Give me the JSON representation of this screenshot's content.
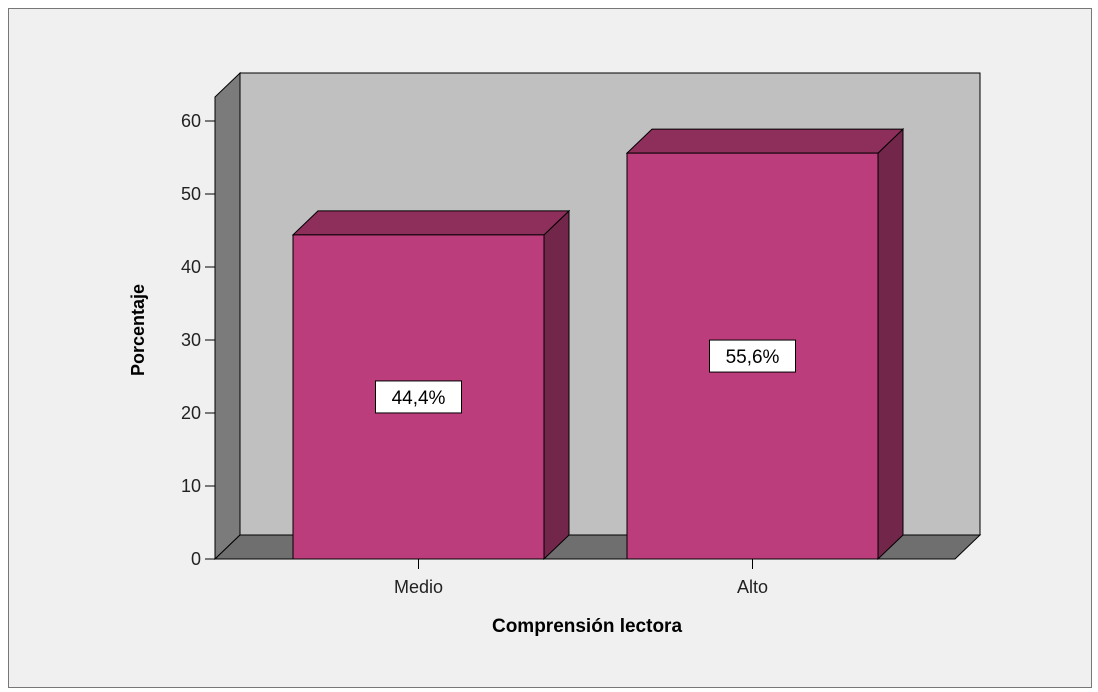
{
  "chart_data": {
    "type": "bar",
    "categories": [
      "Medio",
      "Alto"
    ],
    "values": [
      44.4,
      55.6
    ],
    "data_labels": [
      "44,4%",
      "55,6%"
    ],
    "title": "",
    "xlabel": "Comprensión lectora",
    "ylabel": "Porcentaje",
    "ylim": [
      0,
      60
    ],
    "yticks": [
      0,
      10,
      20,
      30,
      40,
      50,
      60
    ],
    "ytick_labels": [
      "0",
      "10",
      "20",
      "30",
      "40",
      "50",
      "60"
    ],
    "grid": false,
    "legend": "none",
    "style": "3d",
    "colors": {
      "bar_front": "#bb3d7b",
      "bar_top": "#8e2e5b",
      "bar_side": "#72264a",
      "back_wall": "#c0c0c0",
      "side_wall": "#7b7b7b",
      "floor": "#6f6f6f",
      "background": "#f0f0f0"
    }
  }
}
